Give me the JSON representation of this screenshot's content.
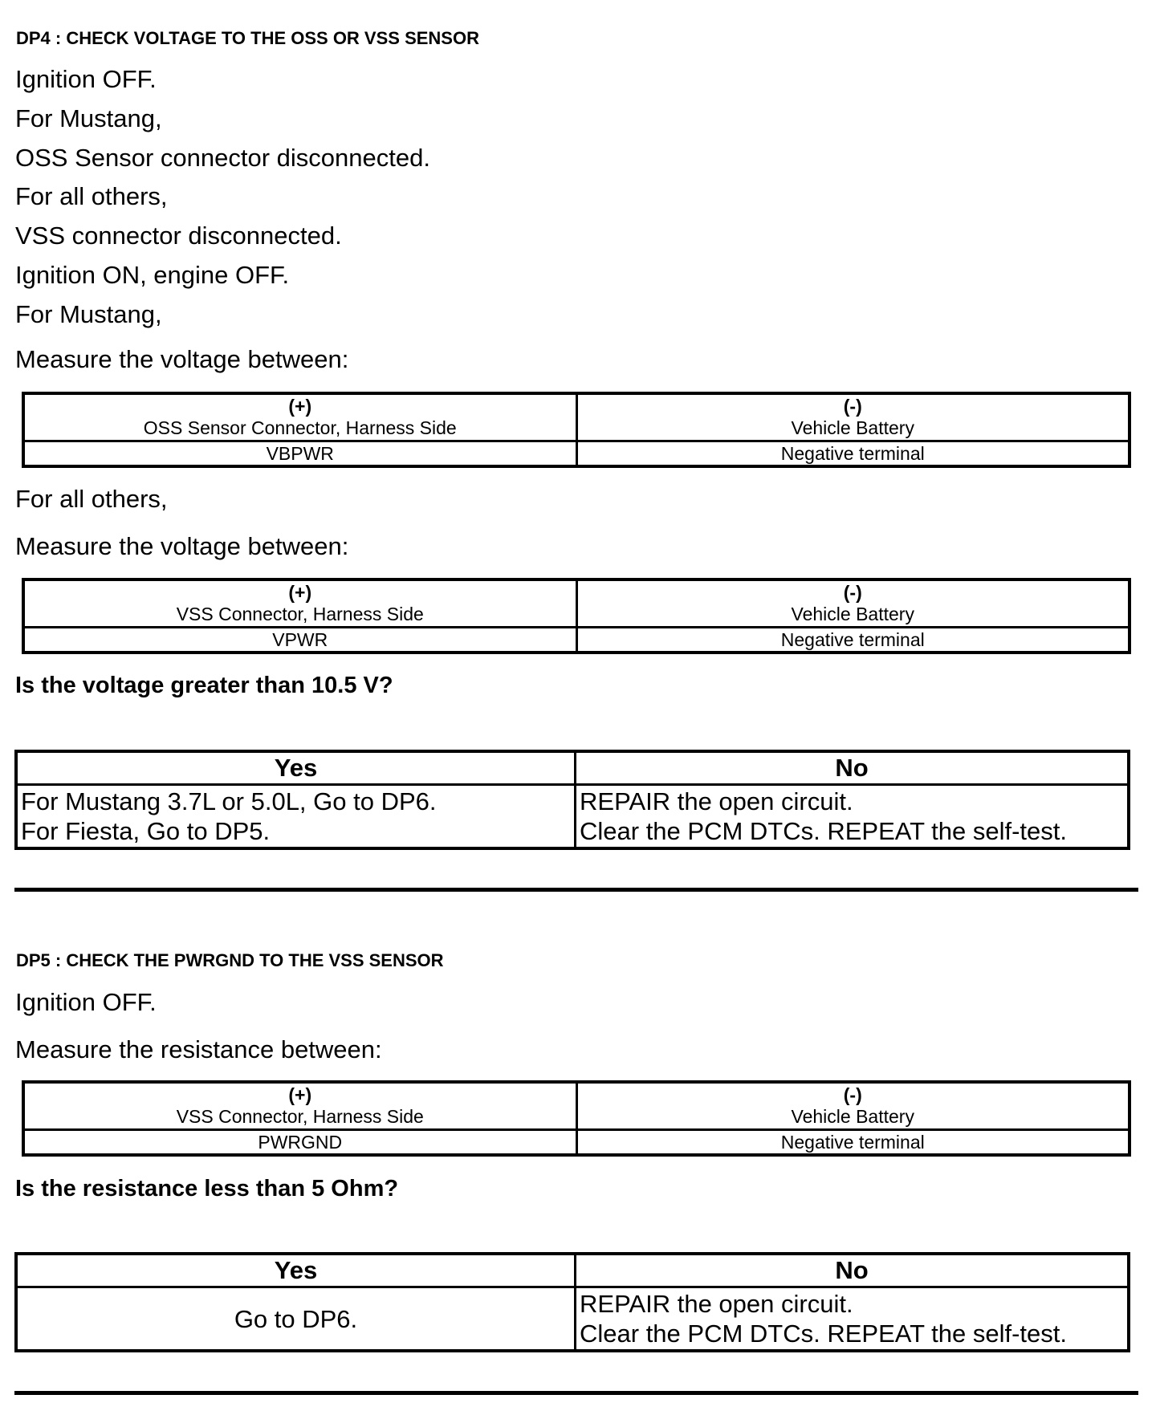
{
  "dp4": {
    "title": "DP4 : CHECK VOLTAGE TO THE OSS OR VSS SENSOR",
    "lines": [
      "Ignition OFF.",
      "For Mustang,",
      "OSS Sensor connector disconnected.",
      "For all others,",
      "VSS connector disconnected.",
      "Ignition ON, engine OFF.",
      "For Mustang,",
      "Measure the voltage between:"
    ],
    "table1": {
      "plus": "(+)",
      "plus_label": "OSS Sensor Connector, Harness Side",
      "minus": "(-)",
      "minus_label": "Vehicle Battery",
      "plus_value": "VBPWR",
      "minus_value": "Negative terminal"
    },
    "others": "For all others,",
    "measure2": "Measure the voltage between:",
    "table2": {
      "plus": "(+)",
      "plus_label": "VSS Connector, Harness Side",
      "minus": "(-)",
      "minus_label": "Vehicle Battery",
      "plus_value": "VPWR",
      "minus_value": "Negative terminal"
    },
    "question": "Is the voltage greater than 10.5 V?",
    "result": {
      "yes_header": "Yes",
      "no_header": "No",
      "yes": [
        "For Mustang 3.7L or 5.0L, Go to DP6.",
        "For Fiesta, Go to DP5."
      ],
      "no": [
        "REPAIR the open circuit.",
        "Clear the PCM DTCs. REPEAT the self-test."
      ]
    }
  },
  "dp5": {
    "title": "DP5 : CHECK THE PWRGND TO THE VSS SENSOR",
    "lines": [
      "Ignition OFF.",
      "Measure the resistance between:"
    ],
    "table": {
      "plus": "(+)",
      "plus_label": "VSS Connector, Harness Side",
      "minus": "(-)",
      "minus_label": "Vehicle Battery",
      "plus_value": "PWRGND",
      "minus_value": "Negative terminal"
    },
    "question": "Is the resistance less than 5 Ohm?",
    "result": {
      "yes_header": "Yes",
      "no_header": "No",
      "yes": [
        "Go to DP6."
      ],
      "no": [
        "REPAIR the open circuit.",
        "Clear the PCM DTCs. REPEAT the self-test."
      ]
    }
  }
}
